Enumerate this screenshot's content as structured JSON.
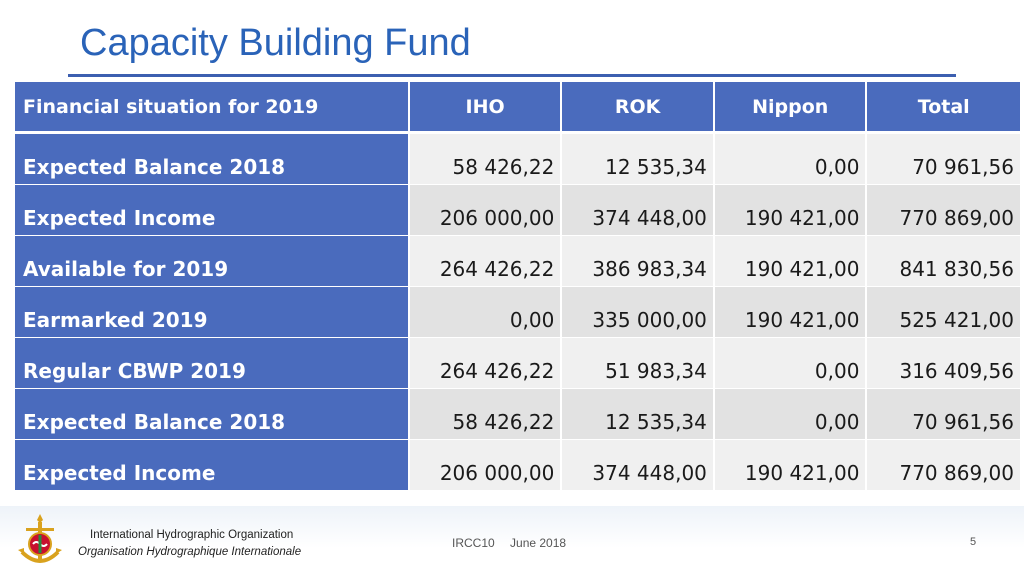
{
  "slide": {
    "title": "Capacity Building Fund"
  },
  "table": {
    "headers": [
      "Financial situation for 2019",
      "IHO",
      "ROK",
      "Nippon",
      "Total"
    ],
    "rows": [
      {
        "label": "Expected Balance 2018",
        "values": [
          "58 426,22",
          "12 535,34",
          "0,00",
          "70 961,56"
        ]
      },
      {
        "label": "Expected Income",
        "values": [
          "206 000,00",
          "374 448,00",
          "190 421,00",
          "770 869,00"
        ]
      },
      {
        "label": "Available for 2019",
        "values": [
          "264 426,22",
          "386 983,34",
          "190 421,00",
          "841 830,56"
        ]
      },
      {
        "label": "Earmarked 2019",
        "values": [
          "0,00",
          "335 000,00",
          "190 421,00",
          "525 421,00"
        ]
      },
      {
        "label": "Regular CBWP 2019",
        "values": [
          "264 426,22",
          "51 983,34",
          "0,00",
          "316 409,56"
        ]
      },
      {
        "label": "Expected Balance 2018",
        "values": [
          "58 426,22",
          "12 535,34",
          "0,00",
          "70 961,56"
        ]
      },
      {
        "label": "Expected Income",
        "values": [
          "206 000,00",
          "374 448,00",
          "190 421,00",
          "770 869,00"
        ]
      }
    ]
  },
  "footer": {
    "org_en": "International Hydrographic Organization",
    "org_fr": "Organisation Hydrographique Internationale",
    "event": "IRCC10",
    "date": "June 2018",
    "page": "5"
  },
  "colors": {
    "title": "#2a63b8",
    "header_bg": "#4a6bbd",
    "cell_bg": "#f0f0f0",
    "cell_alt_bg": "#e2e2e2"
  },
  "icons": {
    "logo": "iho-emblem-icon"
  }
}
